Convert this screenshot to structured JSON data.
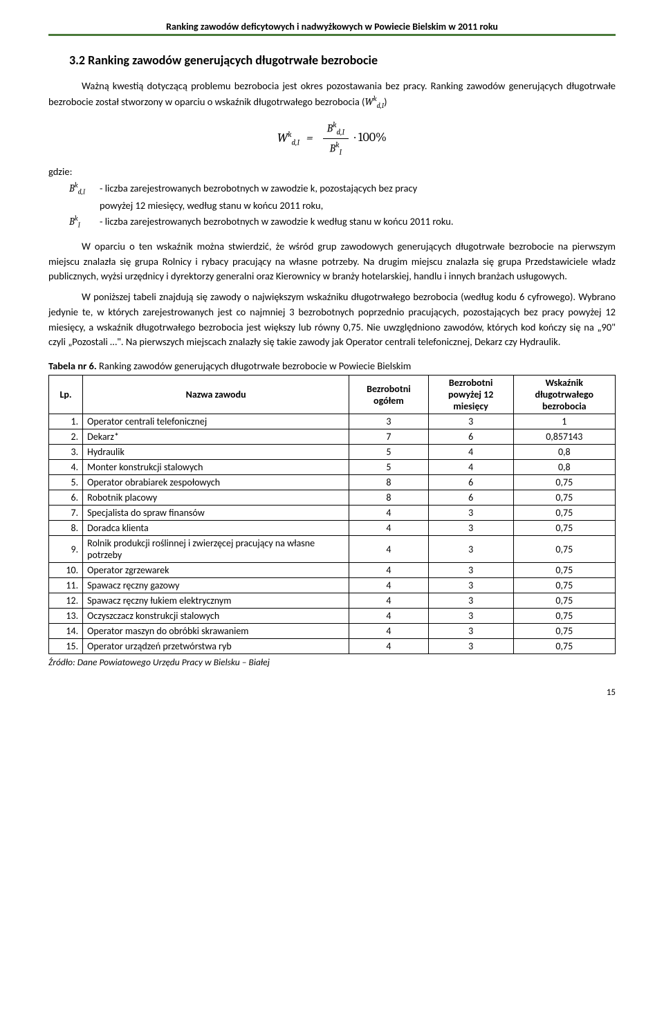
{
  "header": {
    "title": "Ranking zawodów deficytowych i nadwyżkowych w Powiecie Bielskim w 2011 roku"
  },
  "section": {
    "heading": "3.2 Ranking zawodów generujących długotrwałe bezrobocie"
  },
  "para1_a": "Ważną kwestią dotyczącą problemu bezrobocia jest okres pozostawania bez pracy. Ranking zawodów generujących długotrwałe bezrobocie został stworzony w oparciu o wskaźnik długotrwałego bezrobocia (",
  "para1_b": ")",
  "formula": {
    "lhs_W": "W",
    "lhs_sub": "d,I",
    "lhs_sup": "k",
    "eq": "=",
    "num_B": "B",
    "num_sub": "d,I",
    "num_sup": "k",
    "den_B": "B",
    "den_sub": "I",
    "den_sup": "k",
    "tail": "· 100%"
  },
  "defs": {
    "gdzie": "gdzie:",
    "d1_sym_B": "B",
    "d1_sym_sub": "d,I",
    "d1_sym_sup": "k",
    "d1_txt": "- liczba zarejestrowanych bezrobotnych w zawodzie k, pozostających bez pracy",
    "d1_cont": "powyżej 12 miesięcy, według stanu w końcu 2011 roku,",
    "d2_sym_B": "B",
    "d2_sym_sub": "I",
    "d2_sym_sup": "k",
    "d2_txt": "- liczba zarejestrowanych bezrobotnych w zawodzie k według stanu w końcu 2011 roku."
  },
  "para2": "W oparciu o ten wskaźnik można stwierdzić, że wśród grup zawodowych generujących długotrwałe bezrobocie na pierwszym miejscu znalazła się grupa Rolnicy i rybacy pracujący na własne potrzeby. Na drugim miejscu znalazła się grupa Przedstawiciele władz publicznych, wyżsi urzędnicy i dyrektorzy generalni oraz Kierownicy w branży hotelarskiej, handlu i innych branżach usługowych.",
  "para3": "W poniższej tabeli znajdują się zawody o największym wskaźniku długotrwałego bezrobocia (według kodu 6 cyfrowego). Wybrano jedynie te, w których zarejestrowanych jest co najmniej 3 bezrobotnych poprzednio pracujących, pozostających bez pracy powyżej 12 miesięcy, a wskaźnik długotrwałego bezrobocia jest większy lub równy 0,75. Nie uwzględniono zawodów, których kod kończy się na „90\" czyli „Pozostali …\". Na pierwszych miejscach znalazły się takie zawody jak Operator centrali telefonicznej, Dekarz czy Hydraulik.",
  "table": {
    "caption_bold": "Tabela nr 6.",
    "caption_rest": " Ranking zawodów generujących długotrwałe bezrobocie w Powiecie Bielskim",
    "headers": {
      "lp": "Lp.",
      "name": "Nazwa zawodu",
      "total": "Bezrobotni ogółem",
      "over12": "Bezrobotni powyżej 12 miesięcy",
      "idx": "Wskaźnik długotrwałego bezrobocia"
    },
    "rows": [
      {
        "lp": "1.",
        "name": "Operator centrali telefonicznej",
        "t": "3",
        "o": "3",
        "i": "1"
      },
      {
        "lp": "2.",
        "name": "Dekarz*",
        "t": "7",
        "o": "6",
        "i": "0,857143"
      },
      {
        "lp": "3.",
        "name": "Hydraulik",
        "t": "5",
        "o": "4",
        "i": "0,8"
      },
      {
        "lp": "4.",
        "name": "Monter konstrukcji stalowych",
        "t": "5",
        "o": "4",
        "i": "0,8"
      },
      {
        "lp": "5.",
        "name": "Operator obrabiarek zespołowych",
        "t": "8",
        "o": "6",
        "i": "0,75"
      },
      {
        "lp": "6.",
        "name": "Robotnik placowy",
        "t": "8",
        "o": "6",
        "i": "0,75"
      },
      {
        "lp": "7.",
        "name": "Specjalista do spraw finansów",
        "t": "4",
        "o": "3",
        "i": "0,75"
      },
      {
        "lp": "8.",
        "name": "Doradca klienta",
        "t": "4",
        "o": "3",
        "i": "0,75"
      },
      {
        "lp": "9.",
        "name": "Rolnik produkcji roślinnej i zwierzęcej pracujący na własne potrzeby",
        "t": "4",
        "o": "3",
        "i": "0,75"
      },
      {
        "lp": "10.",
        "name": "Operator zgrzewarek",
        "t": "4",
        "o": "3",
        "i": "0,75"
      },
      {
        "lp": "11.",
        "name": "Spawacz ręczny gazowy",
        "t": "4",
        "o": "3",
        "i": "0,75"
      },
      {
        "lp": "12.",
        "name": "Spawacz ręczny łukiem elektrycznym",
        "t": "4",
        "o": "3",
        "i": "0,75"
      },
      {
        "lp": "13.",
        "name": "Oczyszczacz konstrukcji stalowych",
        "t": "4",
        "o": "3",
        "i": "0,75"
      },
      {
        "lp": "14.",
        "name": "Operator maszyn do obróbki skrawaniem",
        "t": "4",
        "o": "3",
        "i": "0,75"
      },
      {
        "lp": "15.",
        "name": "Operator urządzeń przetwórstwa ryb",
        "t": "4",
        "o": "3",
        "i": "0,75"
      }
    ],
    "col_widths": [
      "6%",
      "47%",
      "14%",
      "15%",
      "18%"
    ]
  },
  "source": "Źródło: Dane Powiatowego Urzędu Pracy w Bielsku – Białej",
  "page_num": "15",
  "colors": {
    "header_rule": "#4a7a3a"
  }
}
